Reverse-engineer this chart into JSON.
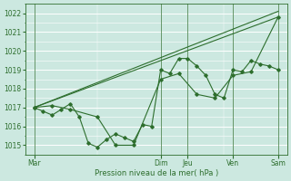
{
  "title": "",
  "xlabel": "Pression niveau de la mer( hPa )",
  "background_color": "#cce8e0",
  "plot_bg_color": "#cce8e0",
  "grid_color": "#ffffff",
  "line_color": "#2d6e2d",
  "ylim": [
    1014.5,
    1022.5
  ],
  "yticks": [
    1015,
    1016,
    1017,
    1018,
    1019,
    1020,
    1021,
    1022
  ],
  "day_labels": [
    "Mar",
    "Dim",
    "Jeu",
    "Ven",
    "Sam"
  ],
  "day_x": [
    0,
    14,
    17,
    22,
    27
  ],
  "vline_x": [
    0,
    14,
    17,
    22,
    27
  ],
  "xlim": [
    -1,
    28
  ],
  "series_wavy_x": [
    0,
    1,
    2,
    3,
    4,
    5,
    6,
    7,
    8,
    9,
    10,
    11,
    12,
    13,
    14,
    15,
    16,
    17,
    18,
    19,
    20,
    21,
    22,
    23,
    24,
    25,
    26,
    27
  ],
  "series_wavy_y": [
    1017.0,
    1016.8,
    1016.6,
    1016.9,
    1017.2,
    1016.5,
    1015.1,
    1014.9,
    1015.3,
    1015.6,
    1015.4,
    1015.2,
    1016.1,
    1016.0,
    1019.0,
    1018.8,
    1019.6,
    1019.6,
    1019.2,
    1018.7,
    1017.7,
    1017.5,
    1019.0,
    1018.9,
    1019.5,
    1019.3,
    1019.2,
    1019.0
  ],
  "series_bumpy_x": [
    0,
    2,
    4,
    7,
    9,
    11,
    14,
    16,
    18,
    20,
    22,
    24,
    27
  ],
  "series_bumpy_y": [
    1017.0,
    1017.1,
    1016.9,
    1016.5,
    1015.0,
    1015.0,
    1018.5,
    1018.8,
    1017.7,
    1017.5,
    1018.7,
    1018.9,
    1021.8
  ],
  "trend1_x": [
    0,
    27
  ],
  "trend1_y": [
    1017.0,
    1021.8
  ],
  "trend2_x": [
    0,
    27
  ],
  "trend2_y": [
    1017.0,
    1022.1
  ]
}
